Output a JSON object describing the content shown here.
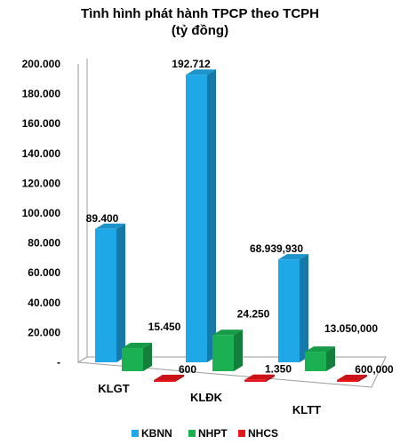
{
  "chart_data": {
    "type": "bar",
    "title": "Tình hình phát hành TPCP theo TCPH",
    "subtitle": "(tỷ đồng)",
    "categories": [
      "KLGT",
      "KLĐK",
      "KLTT"
    ],
    "y_ticks": [
      "-",
      "20.000",
      "40.000",
      "60.000",
      "80.000",
      "100.000",
      "120.000",
      "140.000",
      "160.000",
      "180.000",
      "200.000"
    ],
    "ylim": [
      0,
      200000
    ],
    "grid": false,
    "legend_position": "bottom",
    "series": [
      {
        "name": "KBNN",
        "color": "#1fa8e8",
        "values": [
          89400,
          192712,
          68940
        ],
        "labels": [
          "89.400",
          "192.712",
          "68.939,930"
        ]
      },
      {
        "name": "NHPT",
        "color": "#1bb052",
        "values": [
          15450,
          24250,
          13050
        ],
        "labels": [
          "15.450",
          "24.250",
          "13.050,000"
        ]
      },
      {
        "name": "NHCS",
        "color": "#e8151b",
        "values": [
          600,
          1350,
          600
        ],
        "labels": [
          "600",
          "1.350",
          "600,000"
        ]
      }
    ]
  }
}
